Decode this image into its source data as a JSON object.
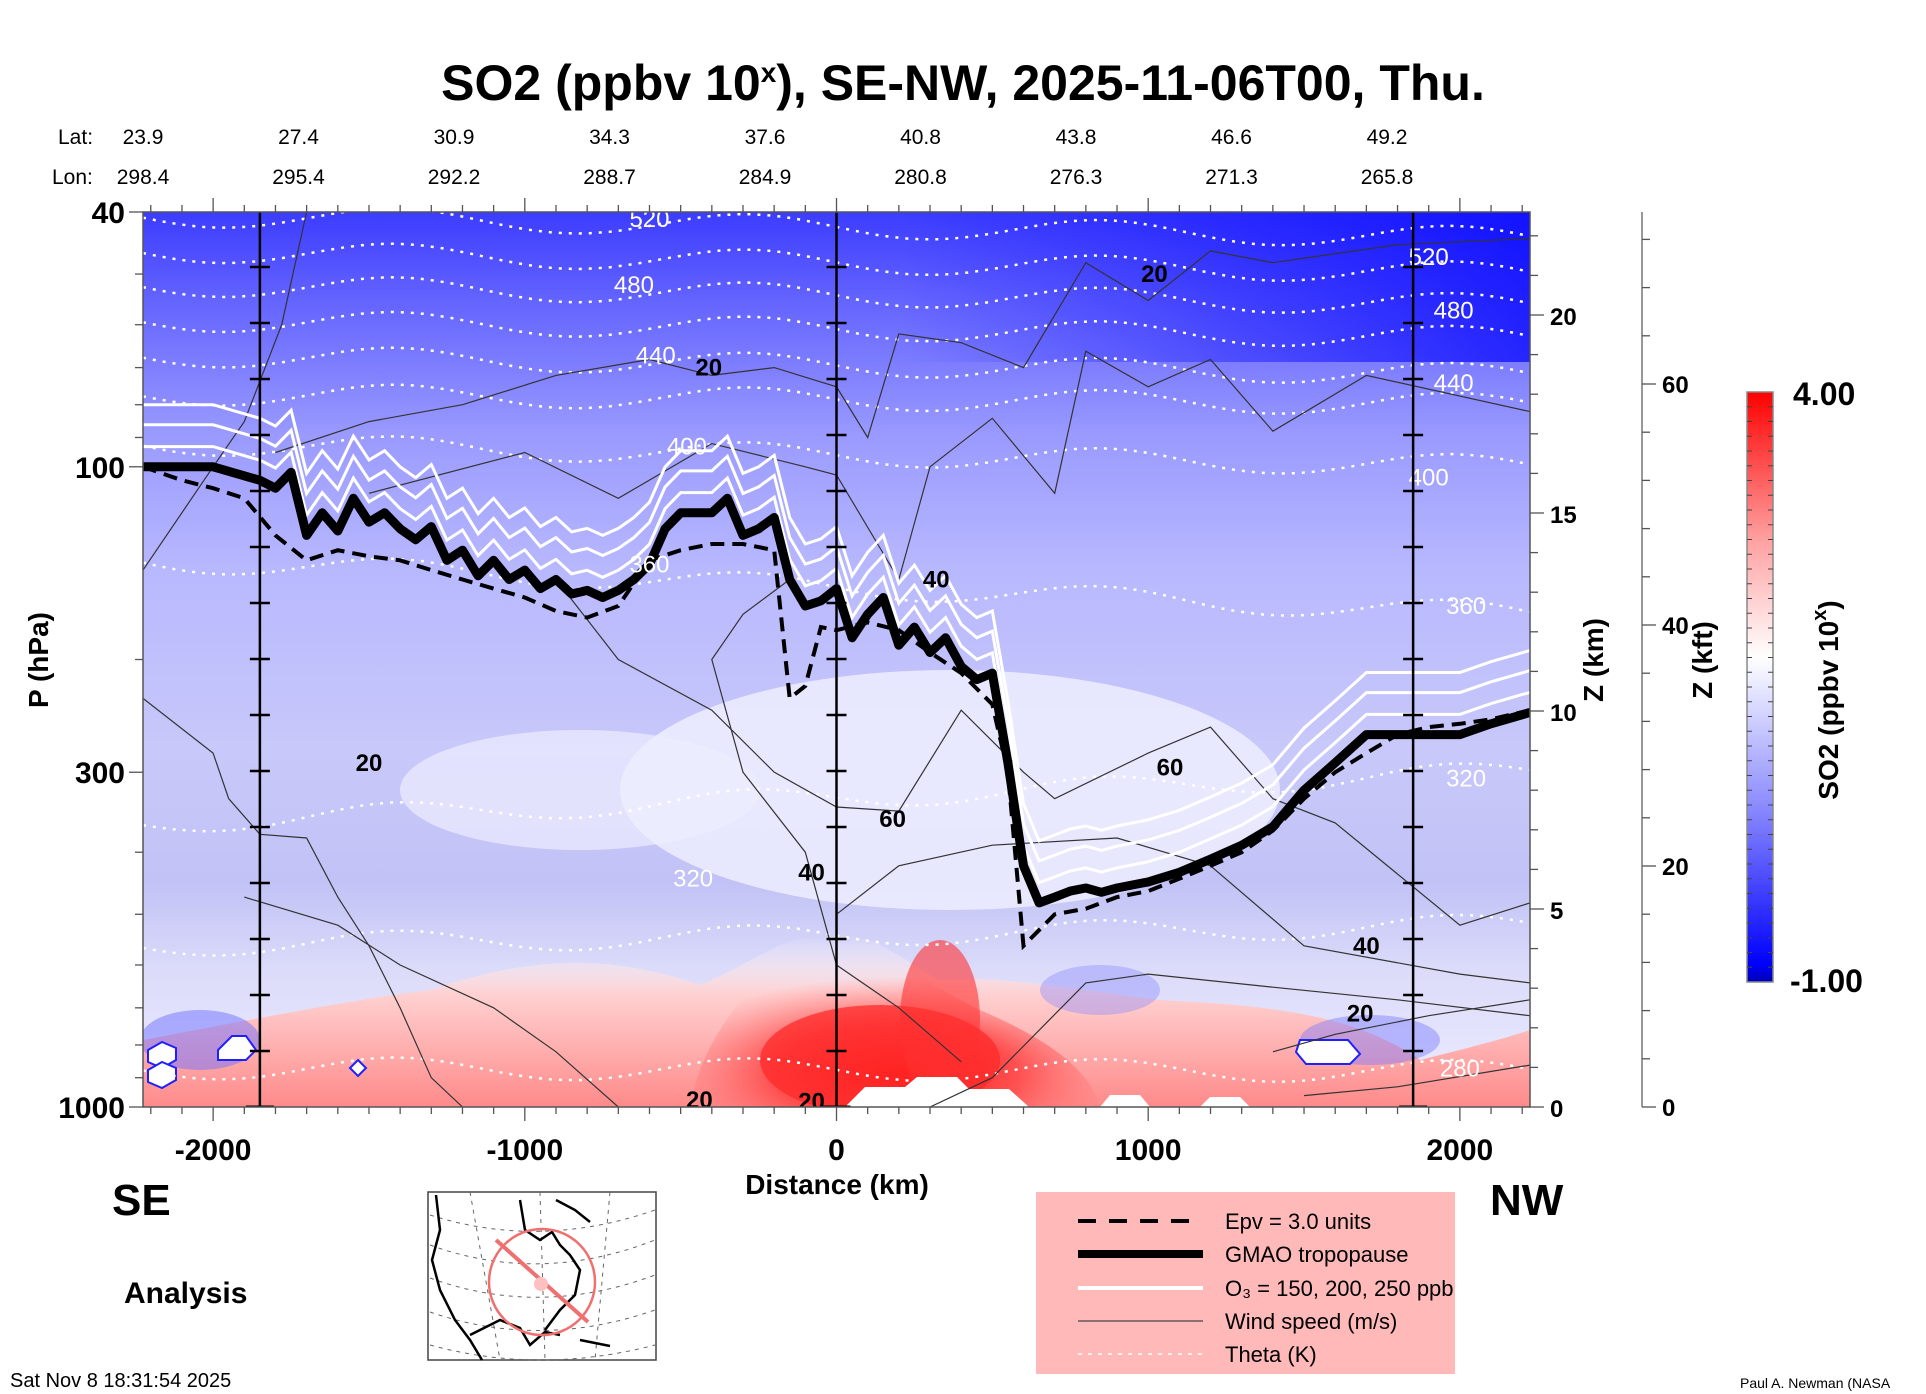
{
  "title": {
    "main": "SO2 (ppbv 10",
    "sup": "x",
    "rest": "), SE-NW, 2025-11-06T00, Thu."
  },
  "header": {
    "lat_label": "Lat:",
    "lon_label": "Lon:",
    "lat": [
      "23.9",
      "27.4",
      "30.9",
      "34.3",
      "37.6",
      "40.8",
      "43.8",
      "46.6",
      "49.2"
    ],
    "lon": [
      "298.4",
      "295.4",
      "292.2",
      "288.7",
      "284.9",
      "280.8",
      "276.3",
      "271.3",
      "265.8"
    ]
  },
  "labels": {
    "se": "SE",
    "nw": "NW",
    "analysis": "Analysis",
    "timestamp": "Sat Nov  8 18:31:54 2025",
    "credit": "Paul A. Newman (NASA"
  },
  "legend": {
    "items": [
      {
        "style": "dashed",
        "label": "Epv = 3.0 units"
      },
      {
        "style": "thick",
        "label": "GMAO tropopause"
      },
      {
        "style": "white",
        "label": "O₃ = 150, 200, 250 ppb"
      },
      {
        "style": "thin",
        "label": "Wind speed (m/s)"
      },
      {
        "style": "dotted",
        "label": "Theta (K)"
      }
    ],
    "background": "#ffb9b9"
  },
  "colors": {
    "high": "#ff0000",
    "mid": "#ffffff",
    "low": "#0000ff",
    "lowest": "#0000b0"
  },
  "chart_data": {
    "type": "heatmap",
    "title": "SO2 (ppbv 10^x), SE-NW, 2025-11-06T00, Thu.",
    "xlabel": "Distance (km)",
    "ylabel": "P (hPa)",
    "y2label": "Z (km)",
    "y3label": "Z (kft)",
    "xlim": [
      -2225,
      2225
    ],
    "ylim": [
      1000,
      40
    ],
    "yscale": "log",
    "x_ticks": [
      -2000,
      -1000,
      0,
      1000,
      2000
    ],
    "x_tick_labels": [
      "-2000",
      "-1000",
      "0",
      "1000",
      "2000"
    ],
    "y_ticks": [
      40,
      100,
      300,
      1000
    ],
    "y_tick_labels": [
      "40",
      "100",
      "300",
      "1000"
    ],
    "z_km_ticks": [
      0,
      5,
      10,
      15,
      20
    ],
    "z_km_labels": [
      "0",
      "5",
      "10",
      "15",
      "20"
    ],
    "z_kft_ticks": [
      0,
      20,
      40,
      60
    ],
    "z_kft_labels": [
      "0",
      "20",
      "40",
      "60"
    ],
    "vertical_markers_km": [
      -1850,
      0,
      1850
    ],
    "colorbar": {
      "label": "SO2 (ppbv 10^x)",
      "min": -1.0,
      "max": 4.0,
      "min_label": "-1.00",
      "max_label": "4.00",
      "levels": 40
    },
    "theta_labels": [
      {
        "value": "520",
        "x": -600,
        "p": 41
      },
      {
        "value": "480",
        "x": -650,
        "p": 52
      },
      {
        "value": "440",
        "x": -580,
        "p": 67
      },
      {
        "value": "400",
        "x": -480,
        "p": 93
      },
      {
        "value": "360",
        "x": -600,
        "p": 142
      },
      {
        "value": "320",
        "x": -460,
        "p": 440
      },
      {
        "value": "520",
        "x": 1900,
        "p": 47
      },
      {
        "value": "480",
        "x": 1980,
        "p": 57
      },
      {
        "value": "440",
        "x": 1980,
        "p": 74
      },
      {
        "value": "400",
        "x": 1900,
        "p": 104
      },
      {
        "value": "360",
        "x": 2020,
        "p": 165
      },
      {
        "value": "320",
        "x": 2020,
        "p": 307
      },
      {
        "value": "280",
        "x": 2000,
        "p": 870
      }
    ],
    "wind_labels": [
      {
        "value": "20",
        "x": -410,
        "p": 70
      },
      {
        "value": "20",
        "x": 1020,
        "p": 50
      },
      {
        "value": "40",
        "x": 320,
        "p": 150
      },
      {
        "value": "20",
        "x": -1500,
        "p": 290
      },
      {
        "value": "60",
        "x": 180,
        "p": 355
      },
      {
        "value": "40",
        "x": -80,
        "p": 430
      },
      {
        "value": "60",
        "x": 1070,
        "p": 295
      },
      {
        "value": "40",
        "x": 1700,
        "p": 560
      },
      {
        "value": "20",
        "x": 1680,
        "p": 715
      },
      {
        "value": "20",
        "x": -440,
        "p": 975
      },
      {
        "value": "20",
        "x": -80,
        "p": 980
      }
    ],
    "tropopause_pressure": {
      "x": [
        -2225,
        -2000,
        -1850,
        -1800,
        -1750,
        -1700,
        -1650,
        -1600,
        -1550,
        -1500,
        -1450,
        -1400,
        -1350,
        -1300,
        -1250,
        -1200,
        -1150,
        -1100,
        -1050,
        -1000,
        -950,
        -900,
        -850,
        -800,
        -750,
        -700,
        -650,
        -600,
        -550,
        -500,
        -450,
        -400,
        -350,
        -300,
        -250,
        -200,
        -150,
        -100,
        -50,
        0,
        50,
        100,
        150,
        200,
        250,
        300,
        350,
        400,
        450,
        500,
        550,
        600,
        650,
        700,
        750,
        800,
        850,
        900,
        1000,
        1100,
        1200,
        1300,
        1400,
        1500,
        1600,
        1700,
        1800,
        1900,
        2000,
        2100,
        2225
      ],
      "p": [
        100,
        100,
        105,
        108,
        102,
        128,
        118,
        126,
        112,
        122,
        118,
        125,
        130,
        124,
        140,
        135,
        148,
        140,
        150,
        145,
        155,
        150,
        158,
        156,
        160,
        156,
        150,
        142,
        125,
        118,
        118,
        118,
        112,
        128,
        125,
        120,
        150,
        165,
        162,
        155,
        185,
        170,
        160,
        190,
        178,
        195,
        185,
        205,
        215,
        210,
        290,
        420,
        480,
        470,
        460,
        455,
        462,
        455,
        445,
        430,
        410,
        390,
        365,
        320,
        290,
        262,
        262,
        262,
        262,
        252,
        242
      ]
    },
    "epv_pressure": {
      "x": [
        -2225,
        -2100,
        -2000,
        -1900,
        -1800,
        -1700,
        -1600,
        -1500,
        -1400,
        -1300,
        -1200,
        -1100,
        -1000,
        -900,
        -800,
        -700,
        -600,
        -500,
        -400,
        -300,
        -200,
        -150,
        -100,
        -50,
        0,
        100,
        200,
        300,
        400,
        500,
        550,
        600,
        700,
        800,
        900,
        1000,
        1100,
        1200,
        1300,
        1400,
        1500,
        1600,
        1700,
        1800,
        1900,
        2000,
        2100,
        2225
      ],
      "p": [
        100,
        105,
        108,
        112,
        128,
        140,
        135,
        138,
        140,
        145,
        150,
        155,
        160,
        168,
        172,
        165,
        140,
        135,
        132,
        132,
        135,
        230,
        220,
        178,
        180,
        175,
        180,
        195,
        210,
        235,
        300,
        560,
        500,
        490,
        470,
        460,
        440,
        420,
        400,
        370,
        330,
        300,
        280,
        262,
        255,
        252,
        248,
        240
      ]
    },
    "o3_lines": [
      "150 ppb",
      "200 ppb",
      "250 ppb"
    ]
  }
}
